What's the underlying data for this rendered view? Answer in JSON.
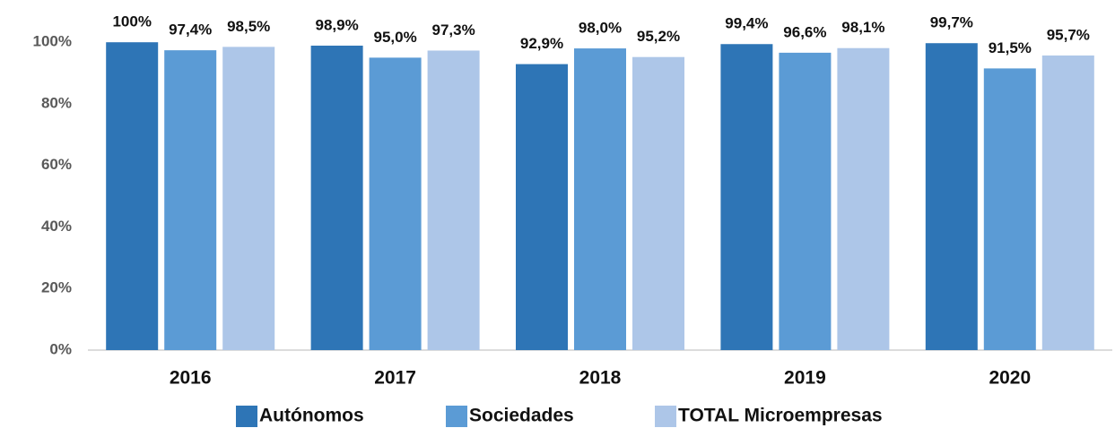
{
  "chart_data": {
    "type": "bar",
    "categories": [
      "2016",
      "2017",
      "2018",
      "2019",
      "2020"
    ],
    "series": [
      {
        "name": "Autónomos",
        "color": "#2e75b6",
        "values": [
          100,
          98.9,
          92.9,
          99.4,
          99.7
        ],
        "value_labels": [
          "100%",
          "98,9%",
          "92,9%",
          "99,4%",
          "99,7%"
        ]
      },
      {
        "name": "Sociedades",
        "color": "#5b9bd5",
        "values": [
          97.4,
          95.0,
          98.0,
          96.6,
          91.5
        ],
        "value_labels": [
          "97,4%",
          "95,0%",
          "98,0%",
          "96,6%",
          "91,5%"
        ]
      },
      {
        "name": "TOTAL Microempresas",
        "color": "#adc6e8",
        "values": [
          98.5,
          97.3,
          95.2,
          98.1,
          95.7
        ],
        "value_labels": [
          "98,5%",
          "97,3%",
          "95,2%",
          "98,1%",
          "95,7%"
        ]
      }
    ],
    "ylim": [
      0,
      105
    ],
    "yticks": [
      {
        "value": 0,
        "label": "0%"
      },
      {
        "value": 20,
        "label": "20%"
      },
      {
        "value": 40,
        "label": "40%"
      },
      {
        "value": 60,
        "label": "60%"
      },
      {
        "value": 80,
        "label": "80%"
      },
      {
        "value": 100,
        "label": "100%"
      }
    ],
    "grid": false,
    "legend": "bottom"
  }
}
